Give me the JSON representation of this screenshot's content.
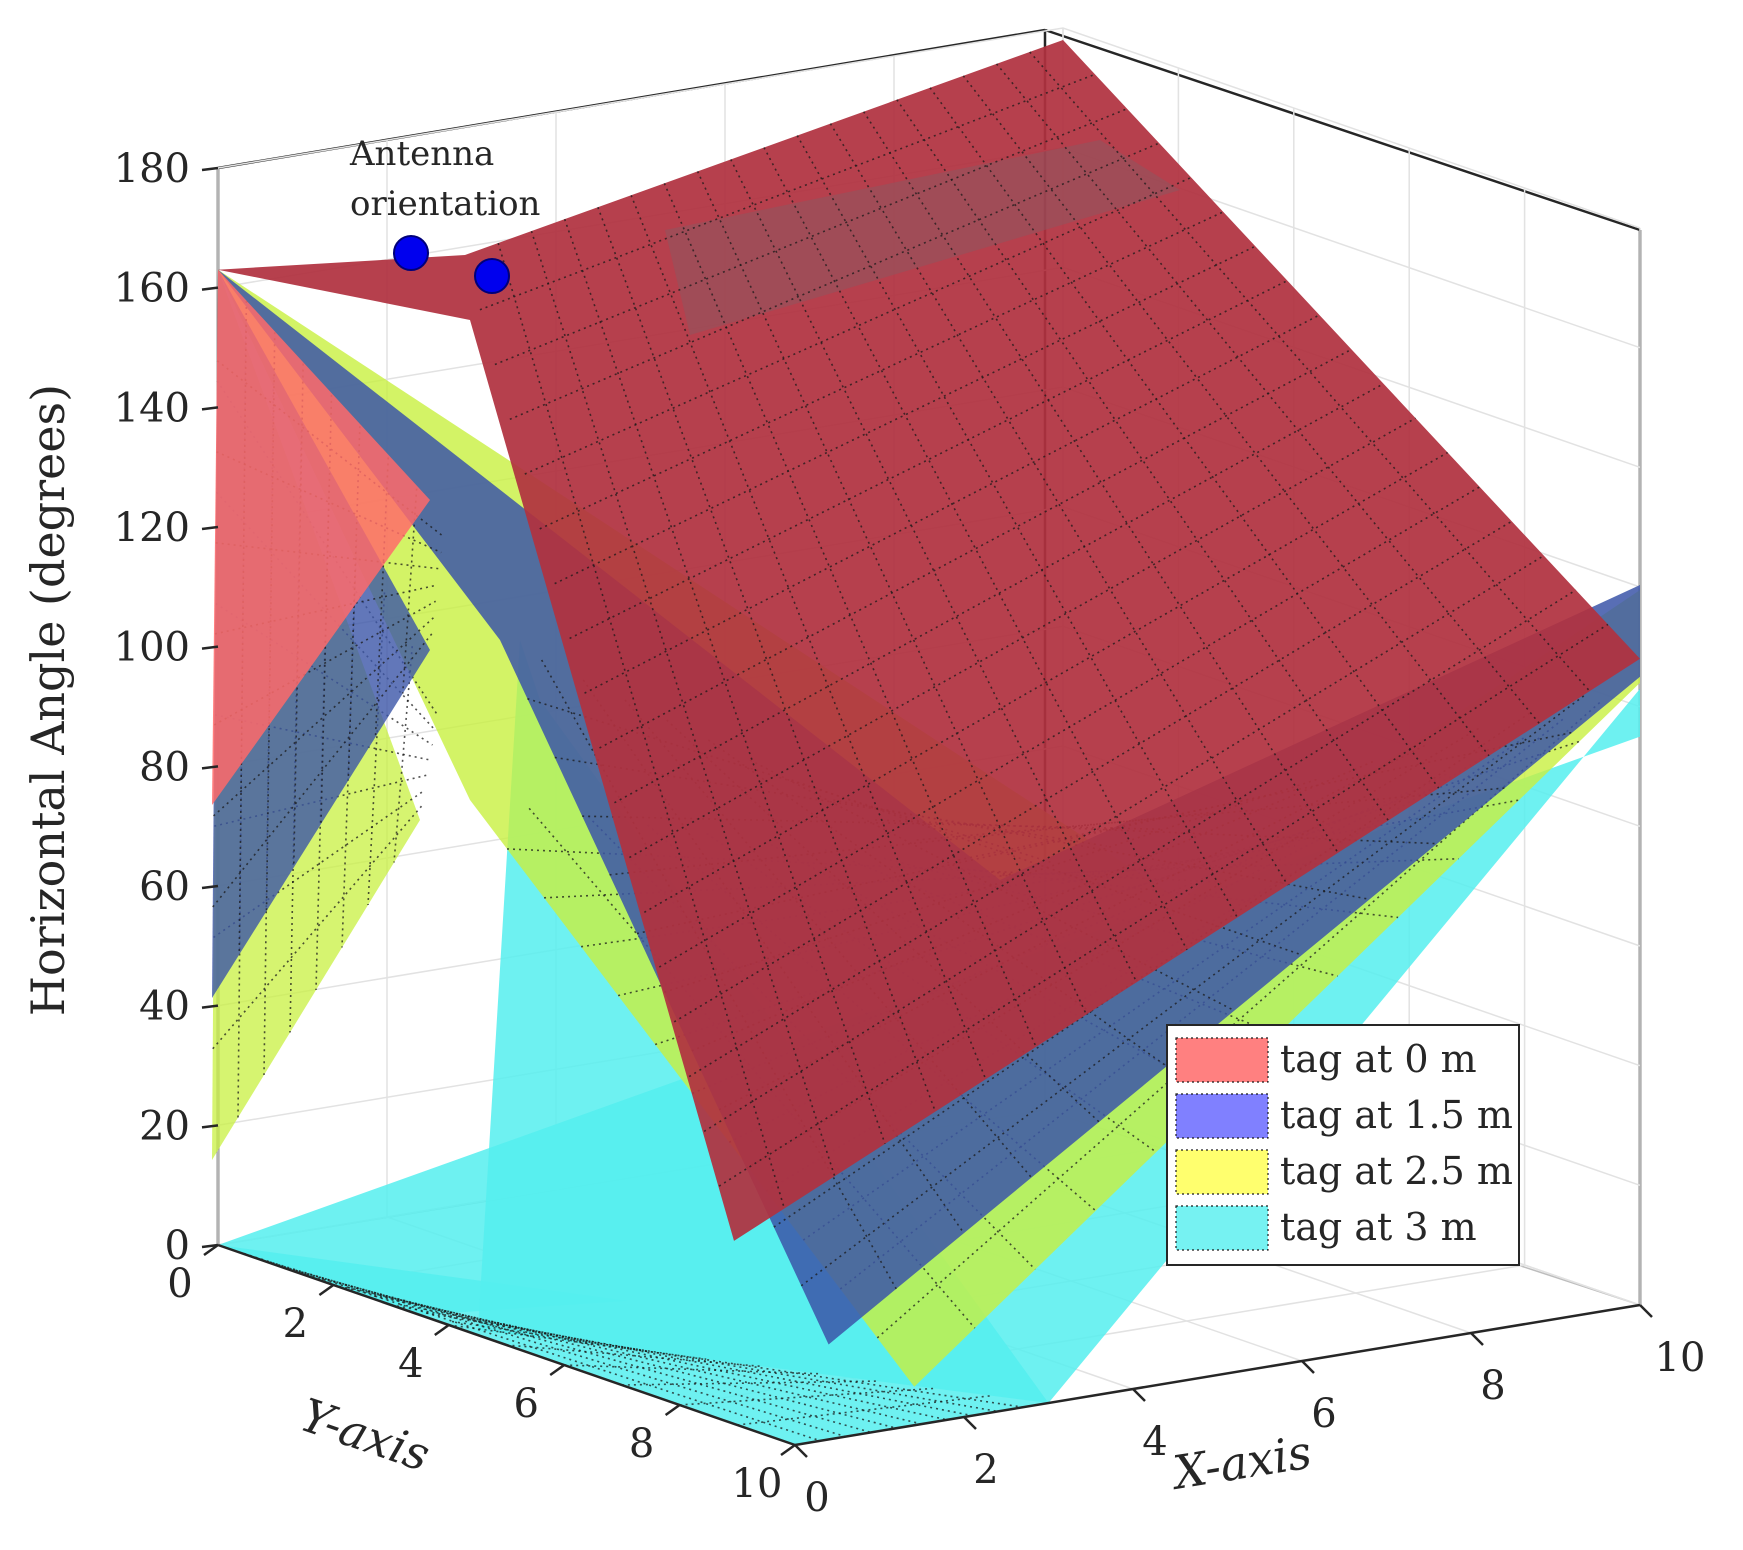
{
  "chart_data": {
    "type": "surface3d",
    "title": "",
    "zlabel": "Horizontal Angle (degrees)",
    "xlabel": "X-axis",
    "ylabel": "Y-axis",
    "zlim": [
      0,
      180
    ],
    "xlim": [
      0,
      10
    ],
    "ylim": [
      0,
      10
    ],
    "z_ticks": [
      "0",
      "20",
      "40",
      "60",
      "80",
      "100",
      "120",
      "140",
      "160",
      "180"
    ],
    "x_ticks": [
      "0",
      "2",
      "4",
      "6",
      "8",
      "10"
    ],
    "y_ticks": [
      "0",
      "2",
      "4",
      "6",
      "8",
      "10"
    ],
    "grid": true,
    "legend_position": "bottom-right",
    "annotation": {
      "lines": [
        "Antenna",
        "orientation"
      ],
      "marker_color": "#0000ee",
      "markers": [
        {
          "x": 0,
          "y": 0,
          "z": 163
        },
        {
          "x": 0.6,
          "y": 0.1,
          "z": 160
        }
      ]
    },
    "series": [
      {
        "name": "tag at 0 m",
        "tag_height": 0,
        "color": "#ff6a6a",
        "surface_color": "#b0323f",
        "points": [
          {
            "x": 0,
            "y": 0,
            "z": 163
          },
          {
            "x": 0,
            "y": 10,
            "z": 73
          },
          {
            "x": 10,
            "y": 0,
            "z": 178
          },
          {
            "x": 10,
            "y": 10,
            "z": 108
          },
          {
            "x": 1.6,
            "y": 6.6,
            "z": 19
          }
        ]
      },
      {
        "name": "tag at 1.5 m",
        "tag_height": 1.5,
        "color": "#6a6aff",
        "surface_color": "#3b55a8",
        "points": [
          {
            "x": 0,
            "y": 0,
            "z": 163
          },
          {
            "x": 0,
            "y": 10,
            "z": 40
          },
          {
            "x": 10,
            "y": 10,
            "z": 105
          },
          {
            "x": 1.9,
            "y": 7.8,
            "z": 5
          }
        ]
      },
      {
        "name": "tag at 2.5 m",
        "tag_height": 2.5,
        "color": "#ffff55",
        "surface_color": "#c8f040",
        "points": [
          {
            "x": 0,
            "y": 0,
            "z": 163
          },
          {
            "x": 0,
            "y": 10,
            "z": 13
          },
          {
            "x": 10,
            "y": 10,
            "z": 104
          },
          {
            "x": 2.3,
            "y": 8.7,
            "z": 0
          }
        ]
      },
      {
        "name": "tag at 3 m",
        "tag_height": 3,
        "color": "#5ef0f0",
        "surface_color": "#55eeee",
        "points": [
          {
            "x": 0,
            "y": 0,
            "z": 0
          },
          {
            "x": 0,
            "y": 10,
            "z": 0
          },
          {
            "x": 10,
            "y": 10,
            "z": 103
          },
          {
            "x": 3,
            "y": 10,
            "z": 0
          }
        ]
      }
    ]
  }
}
